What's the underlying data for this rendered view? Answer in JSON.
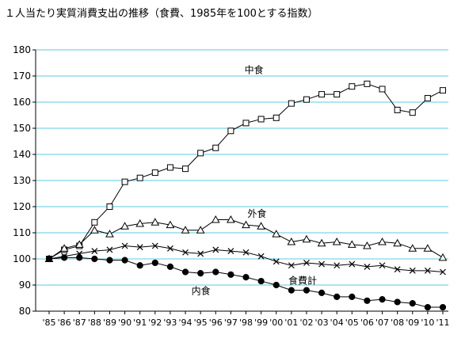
{
  "chart_data": {
    "type": "line",
    "title": "１人当たり実質消費支出の推移（食費、1985年を100とする指数）",
    "xlabel": "",
    "ylabel": "",
    "ylim": [
      80,
      180
    ],
    "yticks": [
      80,
      90,
      100,
      110,
      120,
      130,
      140,
      150,
      160,
      170,
      180
    ],
    "grid": true,
    "categories": [
      "'85",
      "'86",
      "'87",
      "'88",
      "'89",
      "'90",
      "'91",
      "'92",
      "'93",
      "'94",
      "'95",
      "'96",
      "'97",
      "'98",
      "'99",
      "'00",
      "'01",
      "'02",
      "'03",
      "'04",
      "'05",
      "'06",
      "'07",
      "'08",
      "'09",
      "'10",
      "'11"
    ],
    "x_tick_labels": [
      "'85",
      "'86",
      "'87",
      "'88",
      "'89",
      "'90",
      "'91",
      "'92",
      "'93",
      "'94",
      "'95",
      "'96",
      "'97",
      "'98",
      "'99",
      "'00",
      "'01",
      "'02",
      "'03",
      "'04",
      "'05",
      "'06",
      "'07",
      "'08",
      "'09",
      "'10",
      "'11"
    ],
    "series": [
      {
        "name": "中食",
        "marker": "square",
        "values": [
          100,
          103.5,
          105,
          114,
          120,
          129.5,
          131,
          133,
          135,
          134.5,
          140.5,
          142.5,
          149,
          152,
          153.5,
          154,
          159.5,
          161,
          163,
          163,
          166,
          167,
          165,
          157,
          156,
          161.5,
          164.5
        ]
      },
      {
        "name": "外食",
        "marker": "triangle",
        "values": [
          100,
          104,
          105.5,
          111,
          109.5,
          112.5,
          113.5,
          114,
          113,
          111,
          111,
          115,
          115,
          113,
          112.5,
          109.5,
          106.5,
          107.5,
          106,
          106.5,
          105.5,
          105,
          106.5,
          106,
          104,
          104,
          100.5
        ]
      },
      {
        "name": "食費計",
        "marker": "x",
        "values": [
          100,
          101,
          102,
          103,
          103.5,
          105,
          104.5,
          105,
          104,
          102.5,
          102,
          103.5,
          103,
          102.5,
          101,
          99,
          97.5,
          98.5,
          98,
          97.5,
          98,
          97,
          97.5,
          96,
          95.5,
          95.5,
          95
        ]
      },
      {
        "name": "内食",
        "marker": "circle",
        "values": [
          100,
          100.5,
          100.5,
          100,
          99.5,
          99.5,
          97.5,
          98.5,
          97,
          95,
          94.5,
          95,
          94,
          93,
          91.5,
          90,
          88,
          88,
          87,
          85.5,
          85.5,
          84,
          84.5,
          83.5,
          83,
          81.5,
          81.5
        ]
      }
    ]
  }
}
